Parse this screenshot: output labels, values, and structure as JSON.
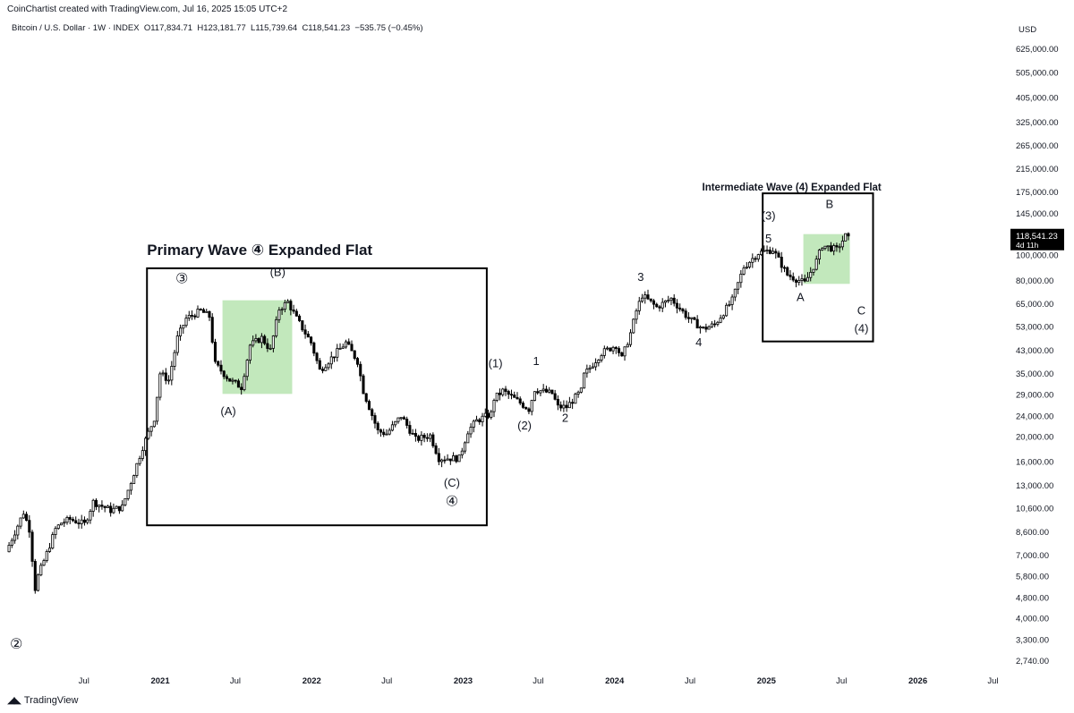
{
  "header": {
    "credit": "CoinChartist created with TradingView.com, Jul 16, 2025 15:05 UTC+2",
    "symbol": "Bitcoin / U.S. Dollar · 1W · INDEX",
    "open": "O117,834.71",
    "high": "H123,181.77",
    "low": "L115,739.64",
    "close": "C118,541.23",
    "change": "−535.75 (−0.45%)"
  },
  "footer": {
    "logo_text": "TradingView",
    "logo_icon": "tradingview-logo-icon"
  },
  "colors": {
    "candle_up": "#ffffff",
    "candle_down": "#000000",
    "wick": "#000000",
    "highlight": "#b7e4b0",
    "price_tag_bg": "#000000"
  },
  "chart_data": {
    "type": "candlestick",
    "y_scale": "log",
    "ylim": [
      2500,
      700000
    ],
    "currency_label": "USD",
    "y_ticks": [
      {
        "value": 625000,
        "label": "625,000.00"
      },
      {
        "value": 505000,
        "label": "505,000.00"
      },
      {
        "value": 405000,
        "label": "405,000.00"
      },
      {
        "value": 325000,
        "label": "325,000.00"
      },
      {
        "value": 265000,
        "label": "265,000.00"
      },
      {
        "value": 215000,
        "label": "215,000.00"
      },
      {
        "value": 175000,
        "label": "175,000.00"
      },
      {
        "value": 145000,
        "label": "145,000.00"
      },
      {
        "value": 100000,
        "label": "100,000.00"
      },
      {
        "value": 80000,
        "label": "80,000.00"
      },
      {
        "value": 65000,
        "label": "65,000.00"
      },
      {
        "value": 53000,
        "label": "53,000.00"
      },
      {
        "value": 43000,
        "label": "43,000.00"
      },
      {
        "value": 35000,
        "label": "35,000.00"
      },
      {
        "value": 29000,
        "label": "29,000.00"
      },
      {
        "value": 24000,
        "label": "24,000.00"
      },
      {
        "value": 20000,
        "label": "20,000.00"
      },
      {
        "value": 16000,
        "label": "16,000.00"
      },
      {
        "value": 13000,
        "label": "13,000.00"
      },
      {
        "value": 10600,
        "label": "10,600.00"
      },
      {
        "value": 8600,
        "label": "8,600.00"
      },
      {
        "value": 7000,
        "label": "7,000.00"
      },
      {
        "value": 5800,
        "label": "5,800.00"
      },
      {
        "value": 4800,
        "label": "4,800.00"
      },
      {
        "value": 4000,
        "label": "4,000.00"
      },
      {
        "value": 3300,
        "label": "3,300.00"
      },
      {
        "value": 2740,
        "label": "2,740.00"
      }
    ],
    "x_ticks": [
      {
        "date": "2020-07-01",
        "label": "Jul",
        "bold": false
      },
      {
        "date": "2021-01-01",
        "label": "2021",
        "bold": true
      },
      {
        "date": "2021-07-01",
        "label": "Jul",
        "bold": false
      },
      {
        "date": "2022-01-01",
        "label": "2022",
        "bold": true
      },
      {
        "date": "2022-07-01",
        "label": "Jul",
        "bold": false
      },
      {
        "date": "2023-01-01",
        "label": "2023",
        "bold": true
      },
      {
        "date": "2023-07-01",
        "label": "Jul",
        "bold": false
      },
      {
        "date": "2024-01-01",
        "label": "2024",
        "bold": true
      },
      {
        "date": "2024-07-01",
        "label": "Jul",
        "bold": false
      },
      {
        "date": "2025-01-01",
        "label": "2025",
        "bold": true
      },
      {
        "date": "2025-07-01",
        "label": "Jul",
        "bold": false
      },
      {
        "date": "2026-01-01",
        "label": "2026",
        "bold": true
      },
      {
        "date": "2026-07-01",
        "label": "Jul",
        "bold": false
      }
    ],
    "x_range": [
      "2019-12-29",
      "2026-08-10"
    ],
    "price_path": [
      [
        "2019-12-30",
        7200
      ],
      [
        "2020-02-10",
        10200
      ],
      [
        "2020-02-24",
        8800
      ],
      [
        "2020-03-09",
        5200
      ],
      [
        "2020-03-16",
        5800
      ],
      [
        "2020-04-06",
        7100
      ],
      [
        "2020-04-27",
        8800
      ],
      [
        "2020-05-11",
        9300
      ],
      [
        "2020-06-01",
        9600
      ],
      [
        "2020-07-06",
        9200
      ],
      [
        "2020-07-27",
        11200
      ],
      [
        "2020-09-07",
        10400
      ],
      [
        "2020-10-05",
        10700
      ],
      [
        "2020-10-26",
        13400
      ],
      [
        "2020-11-23",
        18200
      ],
      [
        "2020-12-21",
        23500
      ],
      [
        "2021-01-04",
        35000
      ],
      [
        "2021-01-25",
        33000
      ],
      [
        "2021-02-15",
        48000
      ],
      [
        "2021-03-08",
        57000
      ],
      [
        "2021-04-12",
        61000
      ],
      [
        "2021-05-03",
        58000
      ],
      [
        "2021-05-17",
        38000
      ],
      [
        "2021-06-21",
        33000
      ],
      [
        "2021-07-19",
        31000
      ],
      [
        "2021-08-09",
        45000
      ],
      [
        "2021-09-06",
        48000
      ],
      [
        "2021-09-27",
        43000
      ],
      [
        "2021-10-18",
        62000
      ],
      [
        "2021-11-08",
        66000
      ],
      [
        "2021-11-29",
        57000
      ],
      [
        "2022-01-03",
        46000
      ],
      [
        "2022-01-24",
        36000
      ],
      [
        "2022-03-28",
        46000
      ],
      [
        "2022-04-25",
        39000
      ],
      [
        "2022-05-09",
        30000
      ],
      [
        "2022-06-13",
        21000
      ],
      [
        "2022-07-04",
        20500
      ],
      [
        "2022-08-08",
        24000
      ],
      [
        "2022-09-12",
        19500
      ],
      [
        "2022-10-17",
        20200
      ],
      [
        "2022-11-07",
        16500
      ],
      [
        "2022-12-26",
        16500
      ],
      [
        "2023-01-16",
        21000
      ],
      [
        "2023-02-06",
        23000
      ],
      [
        "2023-03-13",
        24500
      ],
      [
        "2023-03-20",
        28000
      ],
      [
        "2023-04-10",
        30000
      ],
      [
        "2023-05-01",
        28500
      ],
      [
        "2023-06-12",
        25500
      ],
      [
        "2023-06-26",
        30400
      ],
      [
        "2023-08-07",
        29300
      ],
      [
        "2023-08-21",
        26000
      ],
      [
        "2023-09-11",
        26000
      ],
      [
        "2023-10-16",
        30000
      ],
      [
        "2023-10-23",
        34500
      ],
      [
        "2023-12-04",
        42000
      ],
      [
        "2024-01-08",
        45000
      ],
      [
        "2024-01-22",
        40000
      ],
      [
        "2024-02-12",
        50000
      ],
      [
        "2024-02-26",
        61000
      ],
      [
        "2024-03-11",
        70000
      ],
      [
        "2024-04-15",
        63000
      ],
      [
        "2024-05-20",
        68000
      ],
      [
        "2024-07-01",
        57000
      ],
      [
        "2024-08-05",
        52000
      ],
      [
        "2024-09-02",
        54000
      ],
      [
        "2024-10-14",
        67000
      ],
      [
        "2024-11-11",
        90000
      ],
      [
        "2024-12-16",
        102000
      ],
      [
        "2025-01-20",
        105000
      ],
      [
        "2025-02-24",
        84000
      ],
      [
        "2025-04-07",
        78000
      ],
      [
        "2025-05-05",
        95000
      ],
      [
        "2025-05-19",
        109000
      ],
      [
        "2025-06-23",
        105000
      ],
      [
        "2025-07-14",
        118541
      ]
    ],
    "price_tag": {
      "value": 118541.23,
      "label": "118,541.23",
      "sublabel": "4d 11h"
    },
    "boxes": [
      {
        "x1": "2020-11-30",
        "x2": "2023-02-27",
        "y_top": 89000,
        "y_bottom": 9100
      },
      {
        "x1": "2024-12-23",
        "x2": "2025-09-15",
        "y_top": 173000,
        "y_bottom": 46500
      }
    ],
    "highlights": [
      {
        "x1": "2021-05-31",
        "x2": "2021-11-15",
        "y_top": 67000,
        "y_bottom": 29200
      },
      {
        "x1": "2025-03-31",
        "x2": "2025-07-21",
        "y_top": 120500,
        "y_bottom": 77500
      }
    ],
    "titles": [
      {
        "text": "Primary Wave ④ Expanded Flat",
        "date": "2020-11-30",
        "price": 100000,
        "size": 17,
        "align": "start"
      },
      {
        "text": "Intermediate Wave (4) Expanded Flat",
        "date": "2025-03-03",
        "price": 177000,
        "size": 11.5,
        "align": "middle"
      }
    ],
    "annotations": [
      {
        "text": "②",
        "date": "2020-01-20",
        "price": 3050,
        "size": 16
      },
      {
        "text": "③",
        "date": "2021-02-22",
        "price": 78000,
        "size": 16
      },
      {
        "text": "(A)",
        "date": "2021-06-14",
        "price": 24200,
        "size": 13
      },
      {
        "text": "(B)",
        "date": "2021-10-11",
        "price": 83000,
        "size": 13
      },
      {
        "text": "(C)",
        "date": "2022-12-05",
        "price": 12800,
        "size": 13
      },
      {
        "text": "④",
        "date": "2022-12-05",
        "price": 10800,
        "size": 16
      },
      {
        "text": "(1)",
        "date": "2023-03-20",
        "price": 37000,
        "size": 13
      },
      {
        "text": "(2)",
        "date": "2023-05-29",
        "price": 21300,
        "size": 13
      },
      {
        "text": "1",
        "date": "2023-06-26",
        "price": 37800,
        "size": 13
      },
      {
        "text": "2",
        "date": "2023-09-04",
        "price": 22800,
        "size": 13
      },
      {
        "text": "3",
        "date": "2024-03-04",
        "price": 79500,
        "size": 13
      },
      {
        "text": "4",
        "date": "2024-07-22",
        "price": 44500,
        "size": 13
      },
      {
        "text": "(3)",
        "date": "2025-01-06",
        "price": 137000,
        "size": 13
      },
      {
        "text": "5",
        "date": "2025-01-06",
        "price": 112000,
        "size": 13
      },
      {
        "text": "A",
        "date": "2025-03-24",
        "price": 66500,
        "size": 13
      },
      {
        "text": "B",
        "date": "2025-06-02",
        "price": 152000,
        "size": 13
      },
      {
        "text": "C",
        "date": "2025-08-18",
        "price": 59000,
        "size": 13
      },
      {
        "text": "(4)",
        "date": "2025-08-18",
        "price": 50500,
        "size": 13
      }
    ]
  }
}
